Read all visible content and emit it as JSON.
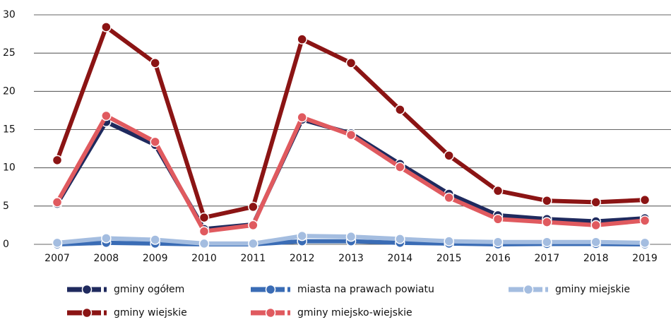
{
  "chart_data": {
    "type": "line",
    "x": [
      "2007",
      "2008",
      "2009",
      "2010",
      "2011",
      "2012",
      "2013",
      "2014",
      "2015",
      "2016",
      "2017",
      "2018",
      "2019"
    ],
    "series": [
      {
        "name": "gminy ogółem",
        "color": "#1f2a5e",
        "values": [
          5.3,
          16,
          13,
          2,
          2.6,
          16.3,
          14.5,
          10.5,
          6.6,
          3.8,
          3.3,
          3.0,
          3.4
        ]
      },
      {
        "name": "miasta na prawach powiatu",
        "color": "#3a6cb5",
        "values": [
          0,
          0.2,
          0.1,
          0,
          0,
          0.4,
          0.4,
          0.2,
          0.1,
          0,
          0.05,
          0.05,
          0
        ]
      },
      {
        "name": "gminy miejskie",
        "color": "#a4bde0",
        "values": [
          0.2,
          0.8,
          0.6,
          0.1,
          0.1,
          1.1,
          1.0,
          0.7,
          0.4,
          0.3,
          0.3,
          0.3,
          0.2
        ]
      },
      {
        "name": "gminy wiejskie",
        "color": "#8b1414",
        "values": [
          11,
          28.4,
          23.7,
          3.5,
          4.9,
          26.8,
          23.7,
          17.6,
          11.6,
          7,
          5.7,
          5.5,
          5.8
        ]
      },
      {
        "name": "gminy miejsko-wiejskie",
        "color": "#e05a5f",
        "values": [
          5.5,
          16.8,
          13.4,
          1.7,
          2.5,
          16.6,
          14.3,
          10.1,
          6.1,
          3.3,
          2.9,
          2.5,
          3.1
        ]
      }
    ],
    "ylim": [
      0,
      30
    ],
    "yticks": [
      0,
      5,
      10,
      15,
      20,
      25,
      30
    ],
    "grid": true
  }
}
